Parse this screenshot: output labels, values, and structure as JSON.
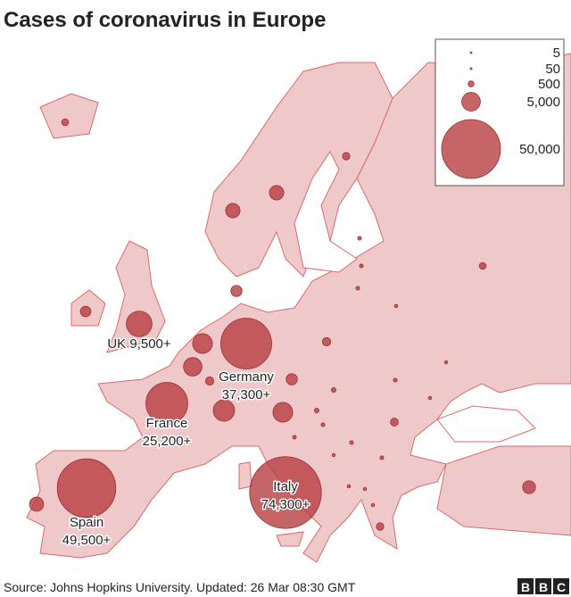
{
  "chart_data": {
    "type": "bubble-map",
    "title": "Cases of coronavirus in Europe",
    "color": "#b63a3e",
    "legend": {
      "sizes": [
        5,
        50,
        500,
        {
          "value": 5000,
          "label": "5,000"
        },
        {
          "value": 50000,
          "label": "50,000"
        }
      ]
    },
    "categories": [
      "UK",
      "Germany",
      "France",
      "Spain",
      "Italy"
    ],
    "values": [
      9500,
      37300,
      25200,
      49500,
      74300
    ],
    "value_labels": [
      "9,500+",
      "37,300+",
      "25,200+",
      "49,500+",
      "74,300+"
    ],
    "unlabeled_values": [
      700,
      3000,
      3000,
      800,
      1600,
      5600,
      4900,
      6600,
      5600,
      1800,
      2900,
      650,
      1000,
      1800,
      2400,
      800,
      900,
      1000,
      200,
      200,
      200,
      150,
      150,
      200,
      150,
      300,
      200,
      200,
      150,
      150,
      150,
      150,
      200,
      200,
      300
    ],
    "source": "Source: Johns Hopkins University. Updated: 26 Mar 08:30 GMT",
    "logo": [
      "B",
      "B",
      "C"
    ]
  }
}
